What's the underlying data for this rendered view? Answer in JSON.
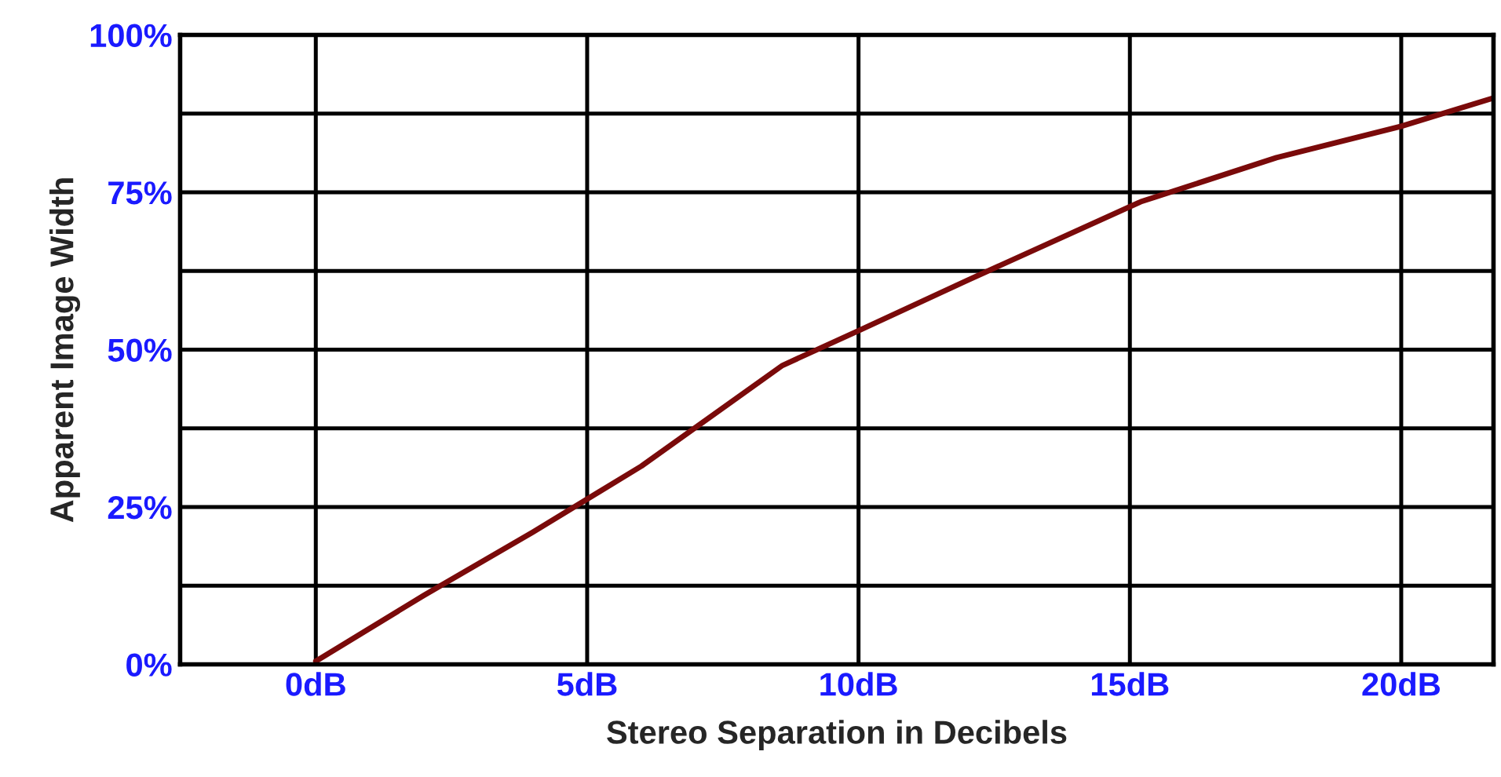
{
  "chart_data": {
    "type": "line",
    "xlabel": "Stereo Separation in Decibels",
    "ylabel": "Apparent Image Width",
    "x": [
      0,
      2,
      4,
      6,
      8.6,
      10,
      12,
      15.2,
      17.7,
      20,
      21.7
    ],
    "series": [
      {
        "color": "#7a0a0a",
        "values": [
          0.5,
          11,
          21,
          31.5,
          47.5,
          53,
          61,
          73.5,
          80.5,
          85.5,
          90
        ]
      }
    ],
    "xlim": [
      -2.5,
      21.7
    ],
    "xticks": [
      {
        "value": 0,
        "label": "0dB"
      },
      {
        "value": 5,
        "label": "5dB"
      },
      {
        "value": 10,
        "label": "10dB"
      },
      {
        "value": 15,
        "label": "15dB"
      },
      {
        "value": 20,
        "label": "20dB"
      }
    ],
    "ylim": [
      0,
      100
    ],
    "yticks": [
      {
        "value": 0,
        "label": "0%"
      },
      {
        "value": 12.5,
        "label": null
      },
      {
        "value": 25,
        "label": "25%"
      },
      {
        "value": 37.5,
        "label": null
      },
      {
        "value": 50,
        "label": "50%"
      },
      {
        "value": 62.5,
        "label": null
      },
      {
        "value": 75,
        "label": "75%"
      },
      {
        "value": 87.5,
        "label": null
      },
      {
        "value": 100,
        "label": "100%"
      }
    ],
    "grid": true,
    "marker": "none",
    "line_style": "solid"
  }
}
